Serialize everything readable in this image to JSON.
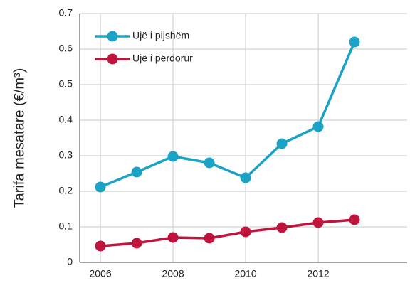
{
  "chart_data": {
    "type": "line",
    "y_label": "Tarifa mesatare (€/m³)",
    "x": [
      2006,
      2007,
      2008,
      2009,
      2010,
      2011,
      2012,
      2013
    ],
    "series": [
      {
        "name": "Ujë i pijshëm",
        "color": "#1ba3c6",
        "values": [
          0.212,
          0.254,
          0.298,
          0.28,
          0.238,
          0.334,
          0.382,
          0.62
        ]
      },
      {
        "name": "Ujë i përdorur",
        "color": "#c0143c",
        "values": [
          0.046,
          0.054,
          0.07,
          0.068,
          0.086,
          0.098,
          0.112,
          0.12
        ]
      }
    ],
    "xlim": [
      2005.43,
      2014.45
    ],
    "xticks": [
      2006,
      2008,
      2010,
      2012
    ],
    "ylim": [
      0,
      0.7
    ],
    "yticks": [
      0,
      0.1,
      0.2,
      0.3,
      0.4,
      0.5,
      0.6,
      0.7
    ],
    "grid": true,
    "legend": "upper left"
  }
}
